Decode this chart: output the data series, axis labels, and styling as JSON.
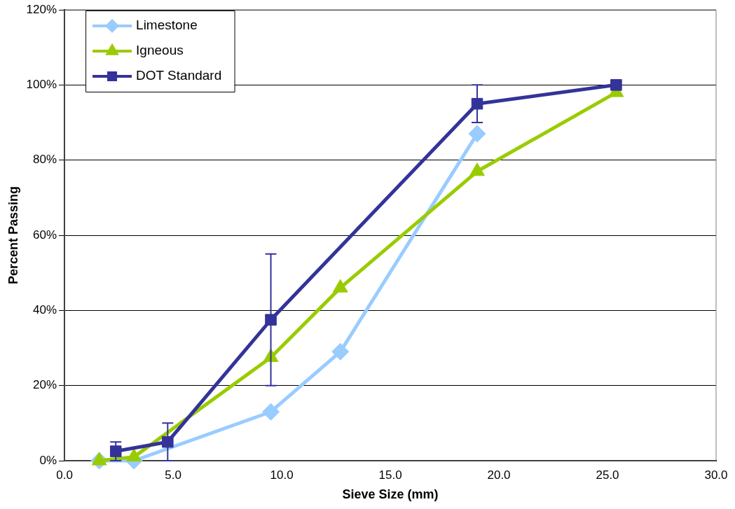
{
  "chart_data": {
    "type": "line",
    "xlabel": "Sieve Size (mm)",
    "ylabel": "Percent Passing",
    "xlim": [
      0,
      30
    ],
    "xticks": [
      {
        "value": 0,
        "label": "0.0"
      },
      {
        "value": 5,
        "label": "5.0"
      },
      {
        "value": 10,
        "label": "10.0"
      },
      {
        "value": 15,
        "label": "15.0"
      },
      {
        "value": 20,
        "label": "20.0"
      },
      {
        "value": 25,
        "label": "25.0"
      },
      {
        "value": 30,
        "label": "30.0"
      }
    ],
    "ylim": [
      0,
      120
    ],
    "yticks": [
      {
        "value": 0,
        "label": "0%"
      },
      {
        "value": 20,
        "label": "20%"
      },
      {
        "value": 40,
        "label": "40%"
      },
      {
        "value": 60,
        "label": "60%"
      },
      {
        "value": 80,
        "label": "80%"
      },
      {
        "value": 100,
        "label": "100%"
      },
      {
        "value": 120,
        "label": "120%"
      }
    ],
    "grid": "y",
    "legend": "top left",
    "line_style": "solid",
    "series": [
      {
        "name": "Limestone",
        "color": "#99ccff",
        "marker": "diamond",
        "x": [
          1.6,
          3.2,
          9.5,
          12.7,
          19
        ],
        "values": [
          0,
          0,
          13,
          29,
          87
        ]
      },
      {
        "name": "Igneous",
        "color": "#99cc00",
        "marker": "triangle",
        "x": [
          1.6,
          3.2,
          9.5,
          12.7,
          19,
          25.4
        ],
        "values": [
          0,
          1,
          27.5,
          46,
          77,
          98
        ]
      },
      {
        "name": "DOT Standard",
        "color": "#333399",
        "marker": "square",
        "x": [
          2.36,
          4.75,
          9.5,
          19,
          25.4
        ],
        "values": [
          2.5,
          5,
          37.5,
          95,
          100
        ],
        "errors": [
          2.5,
          5,
          17.5,
          5,
          null
        ]
      }
    ]
  }
}
